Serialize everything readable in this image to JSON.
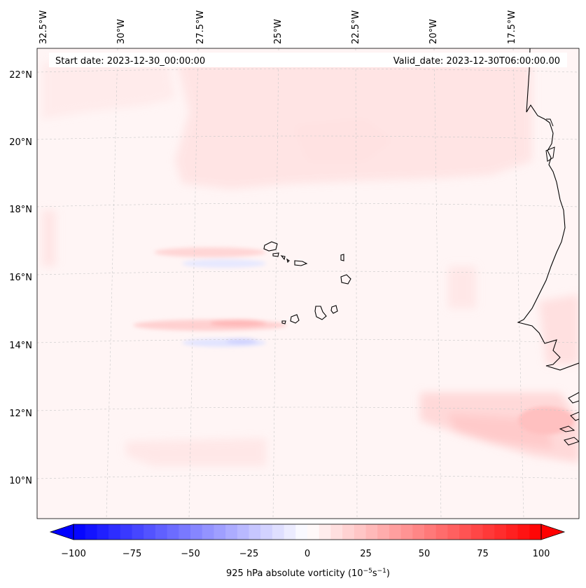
{
  "header": {
    "start_label": "Start date: 2023-12-30_00:00:00",
    "valid_label": "Valid_date: 2023-12-30T06:00:00.00"
  },
  "map": {
    "lon_labels": [
      "32.5°W",
      "30°W",
      "27.5°W",
      "25°W",
      "22.5°W",
      "20°W",
      "17.5°W"
    ],
    "lat_labels": [
      "22°N",
      "20°N",
      "18°N",
      "16°N",
      "14°N",
      "12°N",
      "10°N"
    ],
    "coastline_color": "#000000",
    "gridline_color": "#bdbdbd",
    "background_color": "#fff5f5"
  },
  "colorbar": {
    "tick_labels": [
      "−100",
      "−75",
      "−50",
      "−25",
      "0",
      "25",
      "50",
      "75",
      "100"
    ],
    "label": "925 hPa absolute vorticity (10",
    "label_exp1": "−5",
    "label_mid": "s",
    "label_exp2": "−1",
    "label_end": ")",
    "vmin": -100,
    "vmax": 100,
    "colors": [
      "#0000ff",
      "#ffffff",
      "#ff0000"
    ]
  }
}
